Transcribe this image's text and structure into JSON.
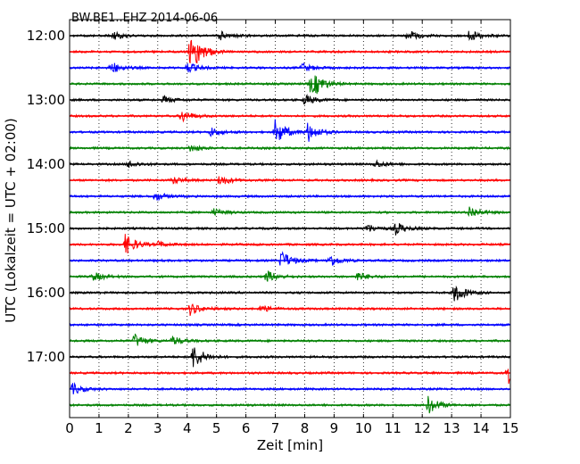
{
  "chart_data": {
    "type": "line",
    "title": "BW.BE1..EHZ 2014-06-06",
    "xlabel": "Zeit  [min]",
    "ylabel": "UTC (Lokalzeit = UTC + 02:00)",
    "xlim": [
      0,
      15
    ],
    "x_ticks": [
      "0",
      "1",
      "2",
      "3",
      "4",
      "5",
      "6",
      "7",
      "8",
      "9",
      "10",
      "11",
      "12",
      "13",
      "14",
      "15"
    ],
    "y_tick_labels": [
      "12:00",
      "13:00",
      "14:00",
      "15:00",
      "16:00",
      "17:00"
    ],
    "y_tick_rows": [
      0,
      4,
      8,
      12,
      16,
      20
    ],
    "trace_interval_min": 15,
    "colors": [
      "#000000",
      "#ff0000",
      "#0000ff",
      "#008000"
    ],
    "grid": "vertical dotted",
    "traces": [
      {
        "start": "12:00",
        "color_index": 0,
        "events": [
          [
            1.5,
            4
          ],
          [
            5.1,
            5
          ],
          [
            11.5,
            6
          ],
          [
            13.6,
            6
          ]
        ]
      },
      {
        "start": "12:15",
        "color_index": 1,
        "events": [
          [
            4.1,
            16
          ],
          [
            4.3,
            5
          ]
        ]
      },
      {
        "start": "12:30",
        "color_index": 2,
        "events": [
          [
            1.4,
            7
          ],
          [
            4.0,
            6
          ],
          [
            7.9,
            5
          ]
        ]
      },
      {
        "start": "12:45",
        "color_index": 3,
        "events": [
          [
            8.2,
            11
          ],
          [
            8.4,
            5
          ]
        ]
      },
      {
        "start": "13:00",
        "color_index": 0,
        "events": [
          [
            3.2,
            4
          ],
          [
            8.0,
            6
          ]
        ]
      },
      {
        "start": "13:15",
        "color_index": 1,
        "events": [
          [
            3.8,
            7
          ]
        ]
      },
      {
        "start": "13:30",
        "color_index": 2,
        "events": [
          [
            4.8,
            5
          ],
          [
            7.0,
            15
          ],
          [
            8.1,
            11
          ]
        ]
      },
      {
        "start": "13:45",
        "color_index": 3,
        "events": [
          [
            4.1,
            4
          ]
        ]
      },
      {
        "start": "14:00",
        "color_index": 0,
        "events": [
          [
            2.0,
            4
          ],
          [
            10.4,
            4
          ]
        ]
      },
      {
        "start": "14:15",
        "color_index": 1,
        "events": [
          [
            3.5,
            4
          ],
          [
            5.1,
            6
          ]
        ]
      },
      {
        "start": "14:30",
        "color_index": 2,
        "events": [
          [
            2.9,
            5
          ]
        ]
      },
      {
        "start": "14:45",
        "color_index": 3,
        "events": [
          [
            4.9,
            4
          ],
          [
            13.6,
            7
          ]
        ]
      },
      {
        "start": "15:00",
        "color_index": 0,
        "events": [
          [
            10.1,
            5
          ],
          [
            11.1,
            7
          ]
        ]
      },
      {
        "start": "15:15",
        "color_index": 1,
        "events": [
          [
            1.9,
            12
          ],
          [
            3.0,
            3
          ]
        ]
      },
      {
        "start": "15:30",
        "color_index": 2,
        "events": [
          [
            7.2,
            11
          ],
          [
            8.8,
            8
          ]
        ]
      },
      {
        "start": "15:45",
        "color_index": 3,
        "events": [
          [
            0.8,
            5
          ],
          [
            6.7,
            7
          ],
          [
            9.8,
            5
          ]
        ]
      },
      {
        "start": "16:00",
        "color_index": 0,
        "events": [
          [
            13.1,
            12
          ]
        ]
      },
      {
        "start": "16:15",
        "color_index": 1,
        "events": [
          [
            4.1,
            7
          ],
          [
            6.5,
            4
          ]
        ]
      },
      {
        "start": "16:30",
        "color_index": 2,
        "events": []
      },
      {
        "start": "16:45",
        "color_index": 3,
        "events": [
          [
            2.2,
            8
          ],
          [
            3.5,
            5
          ]
        ]
      },
      {
        "start": "17:00",
        "color_index": 0,
        "events": [
          [
            4.2,
            14
          ]
        ]
      },
      {
        "start": "17:15",
        "color_index": 1,
        "events": [
          [
            14.9,
            14
          ]
        ]
      },
      {
        "start": "17:30",
        "color_index": 2,
        "events": [
          [
            0.1,
            6
          ]
        ]
      },
      {
        "start": "17:45",
        "color_index": 3,
        "events": [
          [
            12.2,
            10
          ]
        ]
      }
    ]
  }
}
